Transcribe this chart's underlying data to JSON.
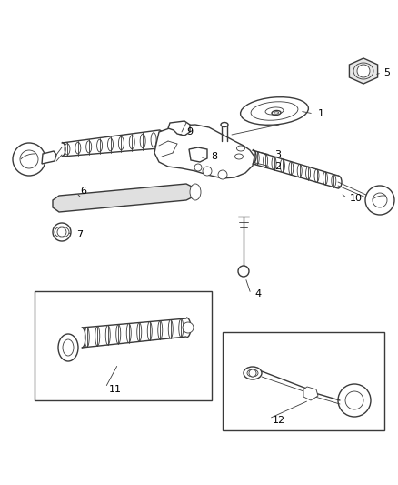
{
  "background_color": "#ffffff",
  "line_color": "#3a3a3a",
  "label_color": "#000000",
  "fig_width": 4.38,
  "fig_height": 5.33,
  "dpi": 100
}
